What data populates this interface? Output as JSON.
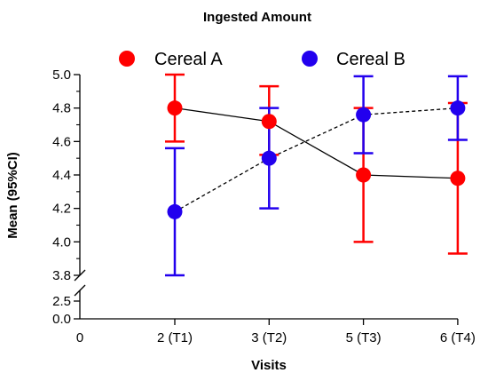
{
  "chart_data": {
    "type": "line",
    "title": "Ingested Amount",
    "xlabel": "Visits",
    "ylabel": "Mean (95%CI)",
    "x_origin_label": "0",
    "categories": [
      "2 (T1)",
      "3 (T2)",
      "5 (T3)",
      "6 (T4)"
    ],
    "y_ticks_upper": [
      "3.8",
      "4.0",
      "4.2",
      "4.4",
      "4.6",
      "4.8",
      "5.0"
    ],
    "y_ticks_lower": [
      "0.0",
      "2.5"
    ],
    "y_axis_break": [
      2.5,
      3.8
    ],
    "ylim_upper": [
      3.8,
      5.0
    ],
    "ylim_lower": [
      0.0,
      2.5
    ],
    "legend_position": "top",
    "series": [
      {
        "name": "Cereal A",
        "color": "#ff0000",
        "line_style": "solid",
        "values": [
          4.8,
          4.72,
          4.4,
          4.38
        ],
        "ci_low": [
          4.6,
          4.52,
          4.0,
          3.93
        ],
        "ci_high": [
          5.0,
          4.93,
          4.8,
          4.83
        ]
      },
      {
        "name": "Cereal B",
        "color": "#2200ee",
        "line_style": "dashed",
        "values": [
          4.18,
          4.5,
          4.76,
          4.8
        ],
        "ci_low": [
          3.8,
          4.2,
          4.53,
          4.61
        ],
        "ci_high": [
          4.56,
          4.8,
          4.99,
          4.99
        ]
      }
    ]
  }
}
